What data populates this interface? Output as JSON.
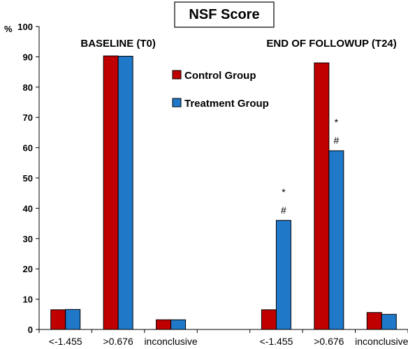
{
  "chart_data": {
    "type": "bar",
    "title": "NSF Score",
    "ylabel": "%",
    "ylim": [
      0,
      100
    ],
    "yticks": [
      0,
      10,
      20,
      30,
      40,
      50,
      60,
      70,
      80,
      90,
      100
    ],
    "grid": false,
    "legend_position": "top-right",
    "groups": [
      "BASELINE (T0)",
      "END OF FOLLOWUP (T24)"
    ],
    "categories": [
      "<-1.455",
      ">0.676",
      "inconclusive",
      "<-1.455",
      ">0.676",
      "inconclusive"
    ],
    "series": [
      {
        "name": "Control Group",
        "color": "#c00000",
        "values": [
          6.5,
          90.3,
          3.2,
          6.5,
          88.0,
          5.6
        ]
      },
      {
        "name": "Treatment Group",
        "color": "#1f78c8",
        "values": [
          6.6,
          90.2,
          3.2,
          36.0,
          59.0,
          5.0
        ]
      }
    ],
    "annotations": [
      {
        "category_index": 3,
        "series": "Treatment Group",
        "labels": [
          "*",
          "#"
        ]
      },
      {
        "category_index": 4,
        "series": "Treatment Group",
        "labels": [
          "*",
          "#"
        ]
      }
    ]
  }
}
